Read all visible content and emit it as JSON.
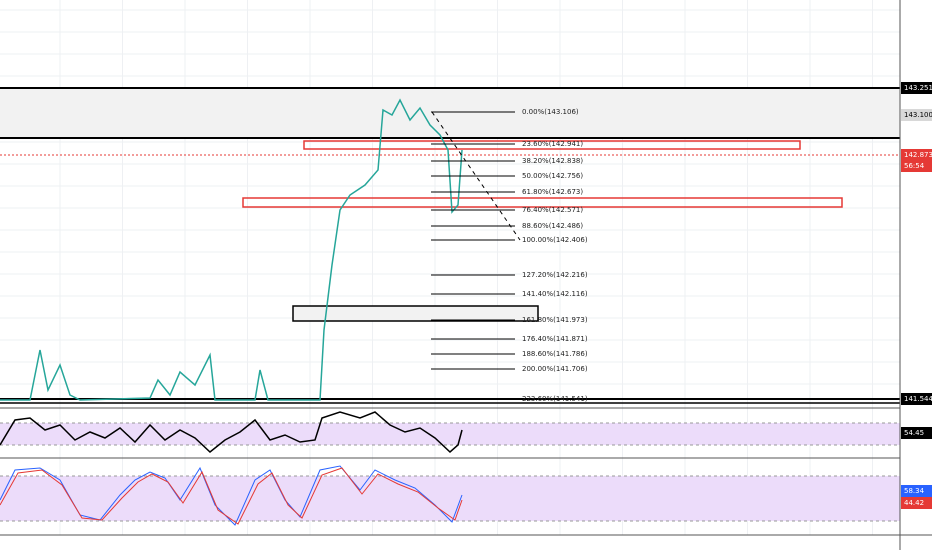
{
  "price_axis": {
    "labels": [
      "143.251",
      "143.100",
      "142.873",
      "56:54",
      "141.544"
    ]
  },
  "fib_levels": [
    "0.00%(143.106)",
    "23.60%(142.941)",
    "38.20%(142.838)",
    "50.00%(142.756)",
    "61.80%(142.673)",
    "76.40%(142.571)",
    "88.60%(142.486)",
    "100.00%(142.406)",
    "127.20%(142.216)",
    "141.40%(142.116)",
    "161.80%(141.973)",
    "176.40%(141.871)",
    "188.60%(141.786)",
    "200.00%(141.706)",
    "223.60%(141.541)"
  ],
  "rsi_panel": {
    "label": "54.45"
  },
  "stoch_panel": {
    "labels": [
      "58.34",
      "44.42"
    ]
  }
}
